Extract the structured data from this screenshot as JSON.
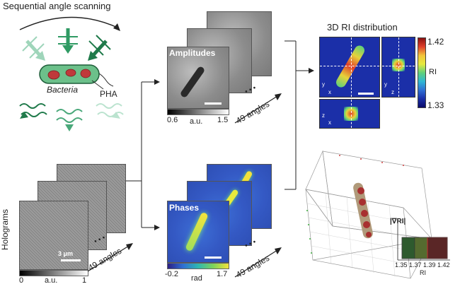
{
  "scanning": {
    "title": "Sequential angle scanning",
    "bacteria_label": "Bacteria",
    "pha_label": "PHA"
  },
  "amplitudes": {
    "label": "Amplitudes",
    "cb_min": "0.6",
    "cb_unit": "a.u.",
    "cb_max": "1.5",
    "dots": "• • •",
    "angles": "49 angles"
  },
  "phases": {
    "label": "Phases",
    "cb_min": "-0.2",
    "cb_unit": "rad",
    "cb_max": "1.7",
    "dots": "• • •",
    "angles": "49 angles"
  },
  "holograms": {
    "label": "Holograms",
    "scale": "3 μm",
    "cb_min": "0",
    "cb_unit": "a.u.",
    "cb_max": "1",
    "dots": "• • •",
    "angles": "49 angles"
  },
  "ri3d": {
    "title": "3D RI distribution",
    "cb_max": "1.42",
    "cb_unit": "RI",
    "cb_min": "1.33",
    "axes": {
      "y": "y",
      "x": "x",
      "z": "z"
    }
  },
  "render3d": {
    "legend_title": "|∇RI|",
    "ri_ticks": [
      "1.35",
      "1.37",
      "1.39",
      "1.42"
    ],
    "ri_axis": "RI"
  },
  "colors": {
    "green_dark": "#1f7a4a",
    "green_light": "#8fd1b0",
    "bacteria": "#6cc08a",
    "pha": "#c0393b"
  }
}
